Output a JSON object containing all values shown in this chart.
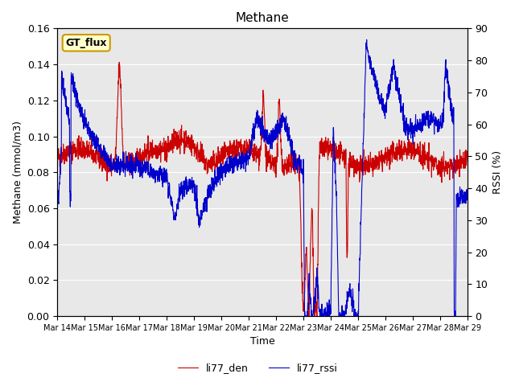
{
  "title": "Methane",
  "ylabel_left": "Methane (mmol/m3)",
  "ylabel_right": "RSSI (%)",
  "xlabel": "Time",
  "n_days": 15,
  "ylim_left": [
    0.0,
    0.16
  ],
  "ylim_right": [
    0,
    90
  ],
  "yticks_left": [
    0.0,
    0.02,
    0.04,
    0.06,
    0.08,
    0.1,
    0.12,
    0.14,
    0.16
  ],
  "yticks_right": [
    0,
    10,
    20,
    30,
    40,
    50,
    60,
    70,
    80,
    90
  ],
  "x_tick_labels": [
    "Mar 14",
    "Mar 15",
    "Mar 16",
    "Mar 17",
    "Mar 18",
    "Mar 19",
    "Mar 20",
    "Mar 21",
    "Mar 22",
    "Mar 23",
    "Mar 24",
    "Mar 25",
    "Mar 26",
    "Mar 27",
    "Mar 28",
    "Mar 29"
  ],
  "color_red": "#cc0000",
  "color_blue": "#0000cc",
  "legend_labels": [
    "li77_den",
    "li77_rssi"
  ],
  "bg_color": "#e8e8e8",
  "annotation_text": "GT_flux",
  "annotation_bg": "#ffffcc",
  "annotation_border": "#cc9900",
  "linewidth": 0.8
}
